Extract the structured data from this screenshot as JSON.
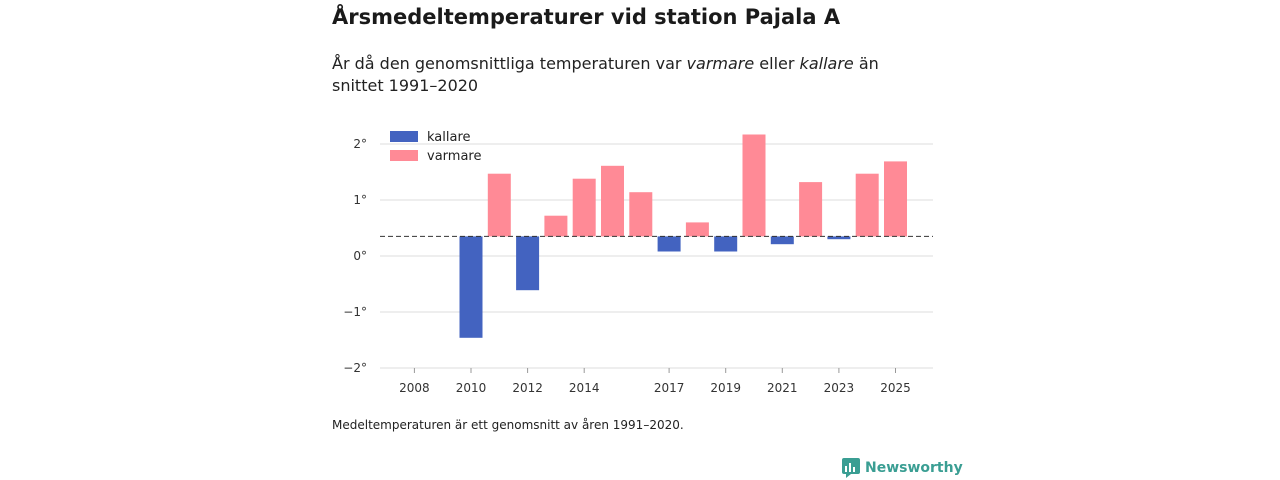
{
  "title": "Årsmedeltemperaturer vid station Pajala A",
  "subtitle": {
    "part1": "År då den genomsnittliga temperaturen var ",
    "warm": "varmare",
    "part2": " eller ",
    "cold": "kallare",
    "part3": " än snittet 1991–2020"
  },
  "footnote": "Medeltemperaturen är ett genomsnitt av åren 1991–2020.",
  "brand": "Newsworthy",
  "colors": {
    "cold": "#4363c0",
    "warm": "#ff8a96",
    "grid": "#dddddd",
    "baseline": "#333333",
    "brand": "#3a9e93"
  },
  "chart_data": {
    "type": "bar",
    "title": "Årsmedeltemperaturer vid station Pajala A",
    "xlabel": "",
    "ylabel": "",
    "baseline": 0.35,
    "ylim": [
      -2,
      2
    ],
    "yticks": [
      "2°",
      "1°",
      "0°",
      "−1°",
      "−2°"
    ],
    "ytick_values": [
      2,
      1,
      0,
      -1,
      -2
    ],
    "xticks": [
      "2008",
      "2010",
      "2012",
      "2014",
      "2017",
      "2019",
      "2021",
      "2023",
      "2025"
    ],
    "xtick_years": [
      2008,
      2010,
      2012,
      2014,
      2017,
      2019,
      2021,
      2023,
      2025
    ],
    "legend": [
      {
        "label": "kallare",
        "color": "cold"
      },
      {
        "label": "varmare",
        "color": "warm"
      }
    ],
    "years": [
      2010,
      2011,
      2012,
      2013,
      2014,
      2015,
      2016,
      2017,
      2018,
      2019,
      2020,
      2021,
      2022,
      2023,
      2024,
      2025
    ],
    "values": [
      -1.46,
      1.47,
      -0.61,
      0.72,
      1.38,
      1.61,
      1.14,
      0.08,
      0.6,
      0.08,
      2.17,
      0.21,
      1.32,
      0.3,
      1.47,
      1.69
    ]
  }
}
